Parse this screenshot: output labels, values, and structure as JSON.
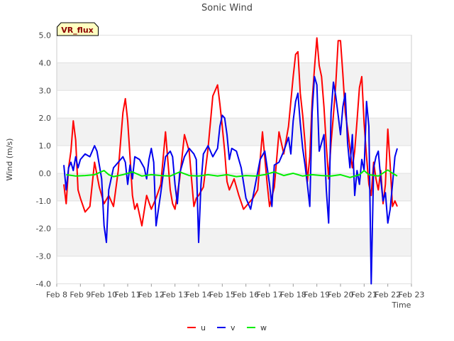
{
  "chart_data": {
    "type": "line",
    "title": "Sonic Wind",
    "badge": "VR_flux",
    "xlabel": "Time",
    "ylabel": "Wind (m/s)",
    "xlim": [
      8,
      23
    ],
    "ylim": [
      -4.0,
      5.0
    ],
    "yticks": [
      -4.0,
      -3.0,
      -2.0,
      -1.0,
      0.0,
      1.0,
      2.0,
      3.0,
      4.0,
      5.0
    ],
    "yticklabels": [
      "-4.0",
      "-3.0",
      "-2.0",
      "-1.0",
      "0.0",
      "1.0",
      "2.0",
      "3.0",
      "4.0",
      "5.0"
    ],
    "xticks": [
      8,
      9,
      10,
      11,
      12,
      13,
      14,
      15,
      16,
      17,
      18,
      19,
      20,
      21,
      22,
      23
    ],
    "xticklabels": [
      "Feb 8",
      "Feb 9",
      "Feb 10",
      "Feb 11",
      "Feb 12",
      "Feb 13",
      "Feb 14",
      "Feb 15",
      "Feb 16",
      "Feb 17",
      "Feb 18",
      "Feb 19",
      "Feb 20",
      "Feb 21",
      "Feb 22",
      "Feb 23"
    ],
    "grid": "horizontal bands",
    "legend_position": "bottom-center",
    "series": [
      {
        "name": "u",
        "color": "#ff0000",
        "x": [
          8.3,
          8.4,
          8.5,
          8.6,
          8.7,
          8.8,
          8.9,
          9.0,
          9.2,
          9.4,
          9.6,
          9.8,
          10.0,
          10.2,
          10.4,
          10.6,
          10.8,
          10.9,
          11.0,
          11.1,
          11.2,
          11.3,
          11.4,
          11.6,
          11.8,
          12.0,
          12.2,
          12.4,
          12.6,
          12.8,
          12.9,
          13.0,
          13.2,
          13.4,
          13.6,
          13.8,
          13.9,
          14.0,
          14.2,
          14.4,
          14.6,
          14.8,
          14.9,
          15.0,
          15.1,
          15.2,
          15.3,
          15.5,
          15.7,
          15.9,
          16.1,
          16.3,
          16.5,
          16.7,
          16.9,
          17.0,
          17.2,
          17.4,
          17.6,
          17.8,
          17.9,
          18.0,
          18.1,
          18.2,
          18.3,
          18.4,
          18.5,
          18.6,
          18.7,
          18.8,
          18.9,
          19.0,
          19.1,
          19.2,
          19.3,
          19.4,
          19.5,
          19.6,
          19.7,
          19.8,
          19.9,
          20.0,
          20.1,
          20.2,
          20.3,
          20.4,
          20.5,
          20.6,
          20.7,
          20.8,
          20.9,
          21.0,
          21.1,
          21.2,
          21.3,
          21.4,
          21.5,
          21.6,
          21.7,
          21.8,
          21.9,
          22.0,
          22.1,
          22.2,
          22.3,
          22.4
        ],
        "y": [
          -0.4,
          -1.1,
          0.2,
          0.8,
          1.9,
          1.2,
          -0.6,
          -0.9,
          -1.4,
          -1.2,
          0.4,
          -0.5,
          -1.1,
          -0.8,
          -1.2,
          0.1,
          2.2,
          2.7,
          1.9,
          0.6,
          -0.8,
          -1.3,
          -1.1,
          -1.9,
          -0.8,
          -1.3,
          -0.9,
          -0.4,
          1.5,
          -0.6,
          -1.1,
          -1.3,
          -0.2,
          1.4,
          0.8,
          -1.2,
          -0.9,
          -0.8,
          -0.5,
          0.9,
          2.8,
          3.2,
          2.5,
          1.7,
          0.8,
          -0.3,
          -0.6,
          -0.2,
          -0.8,
          -1.3,
          -1.1,
          -0.9,
          -0.6,
          1.5,
          -0.4,
          -1.2,
          -0.5,
          1.5,
          0.7,
          1.7,
          2.6,
          3.5,
          4.3,
          4.4,
          2.9,
          2.1,
          1.1,
          -0.3,
          0.6,
          2.6,
          3.8,
          4.9,
          3.9,
          3.5,
          2.4,
          1.0,
          -0.2,
          1.1,
          2.1,
          3.2,
          4.8,
          4.8,
          3.6,
          2.2,
          1.6,
          0.9,
          0.2,
          0.8,
          1.9,
          3.1,
          3.5,
          1.8,
          0.6,
          -0.4,
          -0.8,
          0.4,
          -0.2,
          -0.6,
          0.1,
          -1.1,
          -0.4,
          1.6,
          0.3,
          -1.2,
          -1.0,
          -1.2
        ]
      },
      {
        "name": "v",
        "color": "#0000ee",
        "x": [
          8.3,
          8.4,
          8.5,
          8.6,
          8.7,
          8.8,
          8.9,
          9.0,
          9.2,
          9.4,
          9.6,
          9.7,
          9.8,
          9.9,
          10.0,
          10.1,
          10.2,
          10.4,
          10.6,
          10.8,
          10.9,
          11.0,
          11.1,
          11.2,
          11.3,
          11.5,
          11.7,
          11.8,
          11.9,
          12.0,
          12.1,
          12.2,
          12.4,
          12.6,
          12.8,
          12.9,
          13.0,
          13.1,
          13.2,
          13.4,
          13.6,
          13.8,
          13.9,
          14.0,
          14.1,
          14.2,
          14.4,
          14.6,
          14.8,
          14.9,
          15.0,
          15.1,
          15.2,
          15.3,
          15.4,
          15.6,
          15.8,
          16.0,
          16.2,
          16.4,
          16.6,
          16.8,
          17.0,
          17.1,
          17.2,
          17.4,
          17.6,
          17.8,
          17.9,
          18.0,
          18.1,
          18.2,
          18.3,
          18.4,
          18.5,
          18.6,
          18.7,
          18.8,
          18.9,
          19.0,
          19.1,
          19.2,
          19.3,
          19.4,
          19.5,
          19.6,
          19.7,
          19.8,
          19.9,
          20.0,
          20.1,
          20.2,
          20.3,
          20.4,
          20.5,
          20.6,
          20.7,
          20.8,
          20.9,
          21.0,
          21.1,
          21.2,
          21.3,
          21.4,
          21.5,
          21.6,
          21.7,
          21.8,
          21.9,
          22.0,
          22.1,
          22.2,
          22.3,
          22.4
        ],
        "y": [
          0.3,
          -0.6,
          0.2,
          0.4,
          0.1,
          0.6,
          0.2,
          0.5,
          0.7,
          0.6,
          1.0,
          0.8,
          0.3,
          -0.2,
          -1.9,
          -2.5,
          -0.6,
          0.2,
          0.4,
          0.6,
          0.4,
          -0.4,
          0.3,
          -0.2,
          0.6,
          0.5,
          0.2,
          -0.2,
          0.5,
          0.9,
          0.4,
          -1.9,
          -0.7,
          0.6,
          0.8,
          0.6,
          -0.4,
          -1.1,
          0.0,
          0.6,
          0.9,
          0.7,
          0.5,
          -2.5,
          -0.4,
          0.7,
          1.0,
          0.6,
          0.9,
          1.7,
          2.1,
          2.0,
          1.4,
          0.5,
          0.9,
          0.8,
          0.2,
          -0.9,
          -1.3,
          -0.4,
          0.5,
          0.8,
          -0.4,
          -1.2,
          0.3,
          0.4,
          0.8,
          1.3,
          0.7,
          1.9,
          2.6,
          2.9,
          1.8,
          0.9,
          0.3,
          -0.4,
          -1.2,
          2.2,
          3.5,
          3.2,
          0.8,
          1.1,
          1.4,
          -0.6,
          -1.8,
          2.2,
          3.3,
          2.8,
          2.1,
          1.4,
          2.4,
          2.9,
          1.1,
          0.2,
          1.4,
          -0.8,
          0.1,
          -0.4,
          0.5,
          0.1,
          2.6,
          1.7,
          -4.0,
          0.2,
          0.6,
          0.8,
          -0.2,
          -1.0,
          -0.7,
          -1.8,
          -1.3,
          -0.4,
          0.6,
          0.9
        ]
      },
      {
        "name": "w",
        "color": "#00ee00",
        "x": [
          8.4,
          8.8,
          9.2,
          9.6,
          10.0,
          10.2,
          10.4,
          10.8,
          11.2,
          11.6,
          12.0,
          12.4,
          12.8,
          13.2,
          13.6,
          14.0,
          14.4,
          14.8,
          15.2,
          15.6,
          16.0,
          16.4,
          16.8,
          17.2,
          17.6,
          18.0,
          18.4,
          18.8,
          19.2,
          19.6,
          20.0,
          20.4,
          20.8,
          21.0,
          21.2,
          21.6,
          22.0,
          22.2,
          22.4
        ],
        "y": [
          -0.05,
          -0.1,
          -0.08,
          -0.05,
          0.1,
          -0.05,
          -0.12,
          -0.05,
          0.05,
          -0.1,
          -0.05,
          -0.08,
          -0.1,
          0.05,
          -0.08,
          -0.1,
          -0.05,
          -0.1,
          -0.05,
          -0.12,
          -0.08,
          -0.1,
          -0.05,
          0.05,
          -0.08,
          0.0,
          -0.1,
          -0.05,
          -0.08,
          -0.1,
          -0.05,
          -0.15,
          -0.05,
          0.1,
          -0.05,
          -0.1,
          0.12,
          0.0,
          -0.1
        ]
      }
    ]
  }
}
